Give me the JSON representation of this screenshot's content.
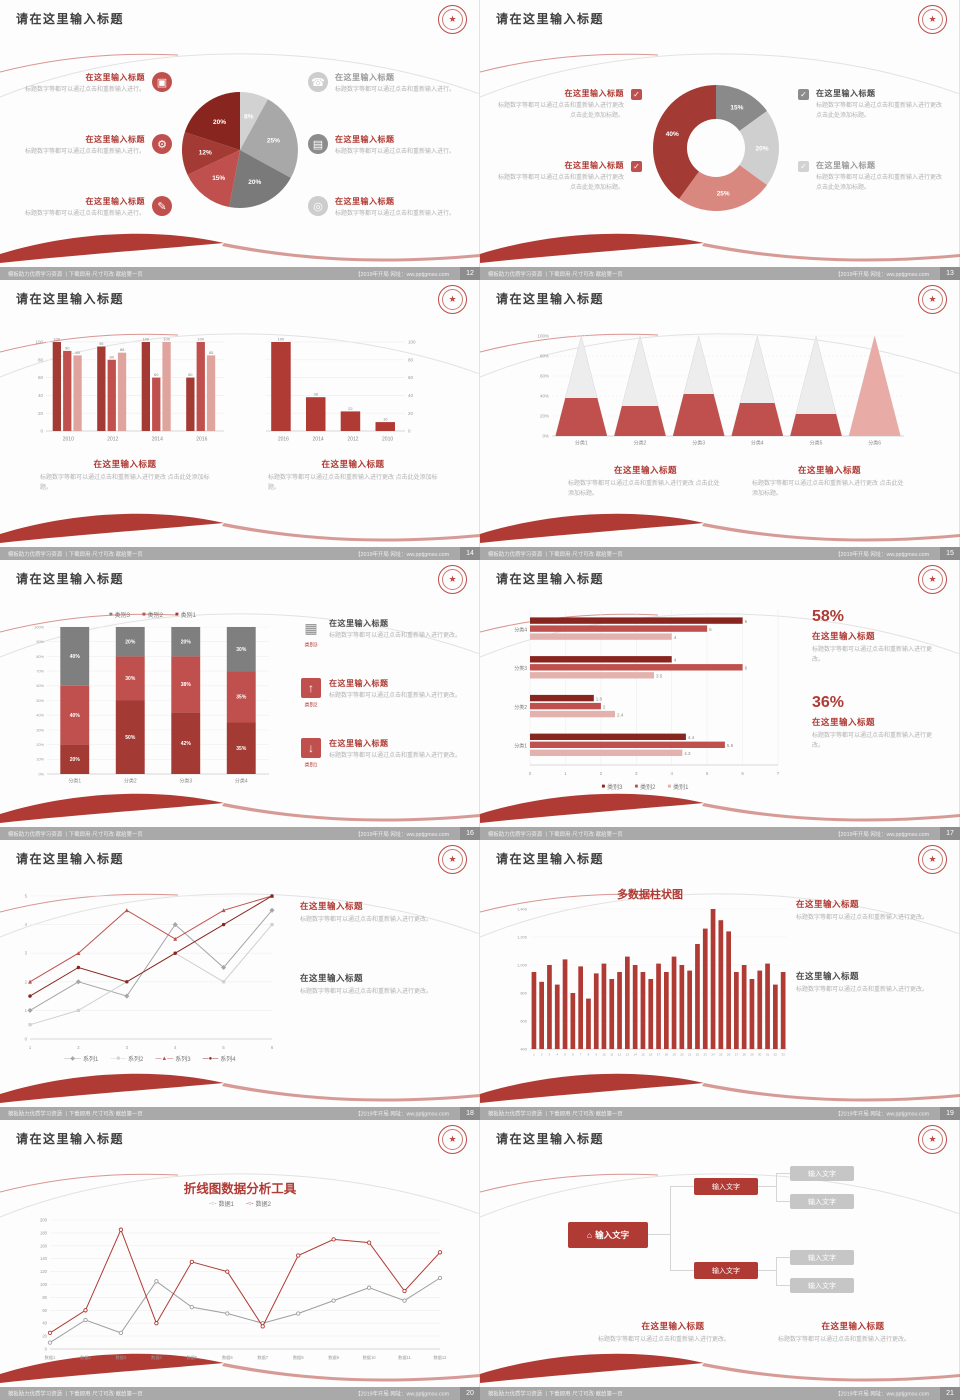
{
  "common": {
    "slide_title": "请在这里输入标题",
    "item_title": "在这里输入标题",
    "desc_short": "标题数字等都可以通过点击和重新输入进行。",
    "desc_med": "标题数字等都可以通过点击和重新输入进行更改。",
    "desc_long": "标题数字等都可以通过点击和重新输入进行更改 点击此处添加标题。"
  },
  "footer": {
    "left": "模板助力优质学习资源 丨下载即用·尺寸可改·献给第一页",
    "right": "【2019年开局 网址：ww.pptjgmsu.com"
  },
  "icons": {
    "monitor": "▣",
    "car": "⚙",
    "book": "✎",
    "phone": "☎",
    "briefcase": "▤",
    "bicycle": "◎",
    "home": "⌂",
    "check": "✓",
    "chart": "▦",
    "arrow_up": "↑",
    "arrow_down": "↓"
  },
  "slides": [
    {
      "page_no": "12"
    },
    {
      "page_no": "13"
    },
    {
      "page_no": "14"
    },
    {
      "page_no": "15"
    },
    {
      "page_no": "16",
      "icon_caps": [
        "类别3",
        "类别2",
        "类别1"
      ]
    },
    {
      "page_no": "17",
      "stats": [
        "58%",
        "36%"
      ]
    },
    {
      "page_no": "18"
    },
    {
      "page_no": "19"
    },
    {
      "page_no": "20"
    },
    {
      "page_no": "21",
      "org_label": "输入文字"
    }
  ],
  "chart_data": [
    {
      "type": "pie",
      "values": [
        8,
        25,
        20,
        15,
        12,
        20
      ],
      "labels": [
        "8%",
        "25%",
        "20%",
        "15%",
        "12%",
        "20%"
      ],
      "colors": [
        "#d2d2d2",
        "#a8a8a8",
        "#7a7a7a",
        "#c0504d",
        "#a33b34",
        "#88251e"
      ]
    },
    {
      "type": "donut",
      "values": [
        15,
        20,
        25,
        40
      ],
      "labels": [
        "15%",
        "20%",
        "25%",
        "40%"
      ],
      "colors": [
        "#8a8a8a",
        "#cfcfcf",
        "#d98880",
        "#a33b34"
      ]
    },
    {
      "type": "bars",
      "ymax": 100,
      "yticks": [
        0,
        20,
        40,
        60,
        80,
        100
      ],
      "palette": [
        "#a33b34",
        "#c0504d",
        "#e0a49e"
      ],
      "groups": [
        {
          "cat": "2010",
          "values": [
            100,
            90,
            85
          ]
        },
        {
          "cat": "2012",
          "values": [
            95,
            80,
            88
          ]
        },
        {
          "cat": "2014",
          "values": [
            100,
            60,
            100
          ]
        },
        {
          "cat": "2016",
          "values": [
            60,
            100,
            85
          ]
        }
      ]
    },
    {
      "type": "bars",
      "ymax": 100,
      "yticks": [
        0,
        20,
        40,
        60,
        80,
        100
      ],
      "axis_side": "right",
      "palette": [
        "#b03a34"
      ],
      "groups": [
        {
          "cat": "2016",
          "values": [
            100
          ]
        },
        {
          "cat": "2014",
          "values": [
            38
          ]
        },
        {
          "cat": "2012",
          "values": [
            22
          ]
        },
        {
          "cat": "2010",
          "values": [
            10
          ]
        }
      ]
    },
    {
      "type": "pyramid",
      "ymax": 100,
      "yticks": [
        0,
        20,
        40,
        60,
        80,
        100
      ],
      "color": "#c0504d",
      "last_color": "#e8aba5",
      "categories": [
        "分类1",
        "分类2",
        "分类3",
        "分类4",
        "分类5",
        "分类6"
      ],
      "values": [
        38,
        30,
        42,
        33,
        22,
        100
      ]
    },
    {
      "type": "stacked",
      "ymax": 100,
      "yticks": [
        0,
        10,
        20,
        30,
        40,
        50,
        60,
        70,
        80,
        90,
        100
      ],
      "categories": [
        "分类1",
        "分类2",
        "分类3",
        "分类4"
      ],
      "series": [
        {
          "name": "类别1",
          "color": "#a33b34",
          "values": [
            20,
            50,
            42,
            35
          ]
        },
        {
          "name": "类别2",
          "color": "#c0504d",
          "values": [
            40,
            30,
            38,
            35
          ]
        },
        {
          "name": "类别3",
          "color": "#7f7f7f",
          "values": [
            40,
            20,
            20,
            30
          ]
        }
      ],
      "legend": [
        {
          "label": "类别3",
          "color": "#7f7f7f",
          "glyph": "■"
        },
        {
          "label": "类别2",
          "color": "#c0504d",
          "glyph": "■"
        },
        {
          "label": "类别1",
          "color": "#a33b34",
          "glyph": "■"
        }
      ]
    },
    {
      "type": "hbars",
      "xmax": 7,
      "xticks": [
        0,
        1,
        2,
        3,
        4,
        5,
        6,
        7
      ],
      "palette": [
        "#88251e",
        "#c0504d",
        "#e3b2ae"
      ],
      "groups": [
        {
          "cat": "分类4",
          "values": [
            6,
            5,
            4
          ]
        },
        {
          "cat": "分类3",
          "values": [
            4,
            6,
            3.5
          ]
        },
        {
          "cat": "分类2",
          "values": [
            1.8,
            2,
            2.4
          ]
        },
        {
          "cat": "分类1",
          "values": [
            4.4,
            5.5,
            4.3
          ]
        }
      ],
      "legend": [
        {
          "label": "类别3",
          "color": "#88251e",
          "glyph": "■"
        },
        {
          "label": "类别2",
          "color": "#c0504d",
          "glyph": "■"
        },
        {
          "label": "类别1",
          "color": "#e3b2ae",
          "glyph": "■"
        }
      ]
    },
    {
      "type": "lines",
      "ymax": 5,
      "yticks": [
        0,
        1,
        2,
        3,
        4,
        5
      ],
      "x_labels": [
        "1",
        "2",
        "3",
        "4",
        "5",
        "6"
      ],
      "series": [
        {
          "name": "系列1",
          "color": "#a6a6a6",
          "marker": "diamond",
          "values": [
            1,
            2,
            1.5,
            4,
            2.5,
            4.5
          ]
        },
        {
          "name": "系列2",
          "color": "#d0d0d0",
          "marker": "square",
          "values": [
            0.5,
            1,
            2,
            3,
            2,
            4
          ]
        },
        {
          "name": "系列3",
          "color": "#c0504d",
          "marker": "triangle",
          "values": [
            2,
            3,
            4.5,
            3.5,
            4.5,
            5
          ]
        },
        {
          "name": "系列4",
          "color": "#88251e",
          "marker": "circle",
          "values": [
            1.5,
            2.5,
            2,
            3,
            4,
            5
          ]
        }
      ],
      "legend": [
        {
          "label": "系列1",
          "color": "#a6a6a6",
          "glyph": "—◆—"
        },
        {
          "label": "系列2",
          "color": "#d0d0d0",
          "glyph": "—■—"
        },
        {
          "label": "系列3",
          "color": "#c0504d",
          "glyph": "—▲—"
        },
        {
          "label": "系列4",
          "color": "#88251e",
          "glyph": "—●—"
        }
      ]
    },
    {
      "type": "columns",
      "title": "多数据柱状图",
      "color": "#b03a34",
      "ymin": 400,
      "ymax": 1400,
      "ytick_vals": [
        400,
        600,
        800,
        1000,
        1200,
        1400
      ],
      "ytick_labels": [
        "400",
        "600",
        "800",
        "1,000",
        "1,200",
        "1,400"
      ],
      "x_labels": [
        "1",
        "2",
        "3",
        "4",
        "5",
        "6",
        "7",
        "8",
        "9",
        "10",
        "11",
        "12",
        "13",
        "14",
        "15",
        "16",
        "17",
        "18",
        "19",
        "20",
        "21",
        "22",
        "23",
        "24",
        "25",
        "26",
        "27",
        "28",
        "29",
        "30",
        "31",
        "32",
        "33"
      ],
      "values": [
        950,
        880,
        1000,
        860,
        1040,
        800,
        990,
        760,
        940,
        1010,
        900,
        950,
        1060,
        1000,
        950,
        900,
        1010,
        950,
        1060,
        1000,
        960,
        1150,
        1260,
        1400,
        1320,
        1240,
        950,
        1000,
        900,
        960,
        1010,
        860,
        950
      ]
    },
    {
      "type": "lines",
      "title": "折线图数据分析工具",
      "ymax": 200,
      "hollow": true,
      "yticks": [
        0,
        20,
        40,
        60,
        80,
        100,
        120,
        140,
        160,
        180,
        200
      ],
      "x_labels": [
        "数据1",
        "数据2",
        "数据3",
        "数据4",
        "数据5",
        "数据6",
        "数据7",
        "数据8",
        "数据9",
        "数据10",
        "数据11",
        "数据12"
      ],
      "series": [
        {
          "name": "数据1",
          "color": "#9e9e9e",
          "marker": "circle",
          "values": [
            10,
            45,
            25,
            105,
            65,
            55,
            40,
            55,
            75,
            95,
            75,
            110
          ]
        },
        {
          "name": "数据2",
          "color": "#b03a34",
          "marker": "circle",
          "values": [
            25,
            60,
            185,
            40,
            135,
            120,
            35,
            145,
            170,
            165,
            90,
            150
          ]
        }
      ],
      "legend": [
        {
          "label": "数据1",
          "color": "#9e9e9e",
          "glyph": "-○-"
        },
        {
          "label": "数据2",
          "color": "#b03a34",
          "glyph": "-○-"
        }
      ]
    }
  ]
}
